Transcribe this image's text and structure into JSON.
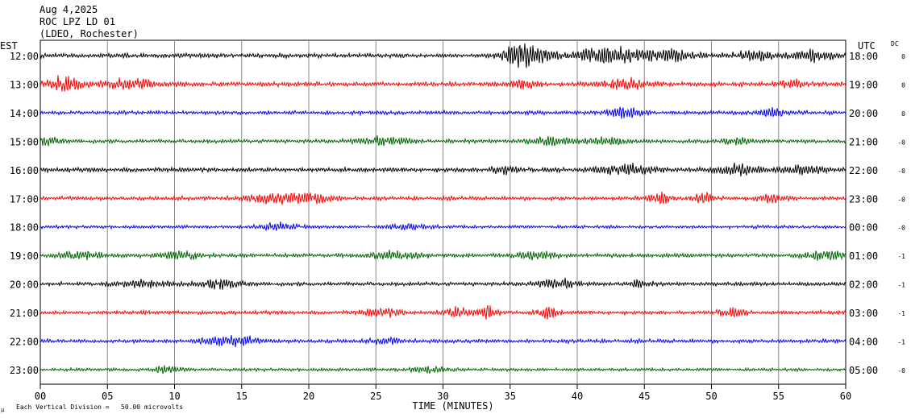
{
  "header": {
    "date": "Aug 4,2025",
    "station": "ROC LPZ LD 01",
    "network": "(LDEO, Rochester)"
  },
  "labels": {
    "left_zone": "EST",
    "right_zone": "UTC",
    "dc": "DC",
    "xlabel": "TIME (MINUTES)",
    "scale_note": "Each Vertical Division =   50.00 microvolts"
  },
  "colors": {
    "trace_cycle": [
      "#000000",
      "#ff0000",
      "#0000ff",
      "#006400"
    ],
    "gridline": "#888888"
  },
  "chart_data": {
    "type": "line",
    "title": "",
    "xlabel": "TIME (MINUTES)",
    "ylabel": "",
    "xlim": [
      0,
      60
    ],
    "x_ticks": [
      "00",
      "05",
      "10",
      "15",
      "20",
      "25",
      "30",
      "35",
      "40",
      "45",
      "50",
      "55",
      "60"
    ],
    "grid": true,
    "rows": [
      {
        "est": "12:00",
        "utc": "18:00",
        "dc": "0",
        "amp": 3,
        "events": [
          {
            "t": 35.8,
            "a": 13,
            "w": 1.2
          },
          {
            "t": 37.5,
            "a": 8,
            "w": 0.8
          },
          {
            "t": 42.5,
            "a": 9,
            "w": 2.5
          },
          {
            "t": 47,
            "a": 5,
            "w": 2
          },
          {
            "t": 53,
            "a": 5,
            "w": 1.5
          },
          {
            "t": 57.5,
            "a": 6,
            "w": 1.5
          }
        ]
      },
      {
        "est": "13:00",
        "utc": "19:00",
        "dc": "0",
        "amp": 3,
        "events": [
          {
            "t": 1.8,
            "a": 8,
            "w": 1.2
          },
          {
            "t": 6.5,
            "a": 5,
            "w": 2
          },
          {
            "t": 36,
            "a": 4,
            "w": 1
          },
          {
            "t": 43.5,
            "a": 6,
            "w": 1.5
          },
          {
            "t": 56,
            "a": 4,
            "w": 1
          }
        ]
      },
      {
        "est": "14:00",
        "utc": "20:00",
        "dc": "0",
        "amp": 2.5,
        "events": [
          {
            "t": 43.5,
            "a": 5,
            "w": 1.5
          },
          {
            "t": 54.5,
            "a": 5,
            "w": 1
          }
        ]
      },
      {
        "est": "15:00",
        "utc": "21:00",
        "dc": "-0",
        "amp": 2.5,
        "events": [
          {
            "t": 0.5,
            "a": 4,
            "w": 1
          },
          {
            "t": 25.5,
            "a": 4,
            "w": 2
          },
          {
            "t": 38,
            "a": 4,
            "w": 1.5
          },
          {
            "t": 42,
            "a": 4,
            "w": 1.5
          },
          {
            "t": 52,
            "a": 3,
            "w": 1
          }
        ]
      },
      {
        "est": "16:00",
        "utc": "22:00",
        "dc": "-0",
        "amp": 3,
        "events": [
          {
            "t": 34.5,
            "a": 4,
            "w": 1
          },
          {
            "t": 43.5,
            "a": 5,
            "w": 2
          },
          {
            "t": 52,
            "a": 6,
            "w": 1.5
          },
          {
            "t": 57,
            "a": 4,
            "w": 1.5
          }
        ]
      },
      {
        "est": "17:00",
        "utc": "23:00",
        "dc": "-0",
        "amp": 2.5,
        "events": [
          {
            "t": 17.5,
            "a": 5,
            "w": 2
          },
          {
            "t": 20.5,
            "a": 5,
            "w": 1.5
          },
          {
            "t": 46.2,
            "a": 6,
            "w": 0.8
          },
          {
            "t": 49.5,
            "a": 6,
            "w": 0.8
          },
          {
            "t": 54.5,
            "a": 4,
            "w": 1
          }
        ]
      },
      {
        "est": "18:00",
        "utc": "00:00",
        "dc": "-0",
        "amp": 2,
        "events": [
          {
            "t": 17.8,
            "a": 4,
            "w": 1.5
          },
          {
            "t": 27.5,
            "a": 3,
            "w": 1.5
          }
        ]
      },
      {
        "est": "19:00",
        "utc": "01:00",
        "dc": "-1",
        "amp": 2.5,
        "events": [
          {
            "t": 3,
            "a": 4,
            "w": 1.5
          },
          {
            "t": 10.5,
            "a": 4,
            "w": 1.5
          },
          {
            "t": 26.5,
            "a": 4,
            "w": 2
          },
          {
            "t": 37,
            "a": 4,
            "w": 1.5
          },
          {
            "t": 58.5,
            "a": 5,
            "w": 1.5
          }
        ]
      },
      {
        "est": "20:00",
        "utc": "02:00",
        "dc": "-1",
        "amp": 2.5,
        "events": [
          {
            "t": 7.5,
            "a": 4,
            "w": 2
          },
          {
            "t": 13.5,
            "a": 4,
            "w": 1.5
          },
          {
            "t": 38.5,
            "a": 5,
            "w": 1.5
          },
          {
            "t": 44.5,
            "a": 3,
            "w": 1
          }
        ]
      },
      {
        "est": "21:00",
        "utc": "03:00",
        "dc": "-1",
        "amp": 2.5,
        "events": [
          {
            "t": 25.5,
            "a": 4,
            "w": 1.5
          },
          {
            "t": 31,
            "a": 5,
            "w": 1
          },
          {
            "t": 33.2,
            "a": 8,
            "w": 0.8
          },
          {
            "t": 37.8,
            "a": 6,
            "w": 0.8
          },
          {
            "t": 51.5,
            "a": 4,
            "w": 1
          }
        ]
      },
      {
        "est": "22:00",
        "utc": "04:00",
        "dc": "-1",
        "amp": 2.5,
        "events": [
          {
            "t": 13,
            "a": 4,
            "w": 1.5
          },
          {
            "t": 15,
            "a": 5,
            "w": 1
          },
          {
            "t": 25.8,
            "a": 3,
            "w": 1
          }
        ]
      },
      {
        "est": "23:00",
        "utc": "05:00",
        "dc": "-0",
        "amp": 2,
        "events": [
          {
            "t": 9.5,
            "a": 4,
            "w": 1
          },
          {
            "t": 29,
            "a": 3,
            "w": 1.5
          }
        ]
      }
    ]
  }
}
